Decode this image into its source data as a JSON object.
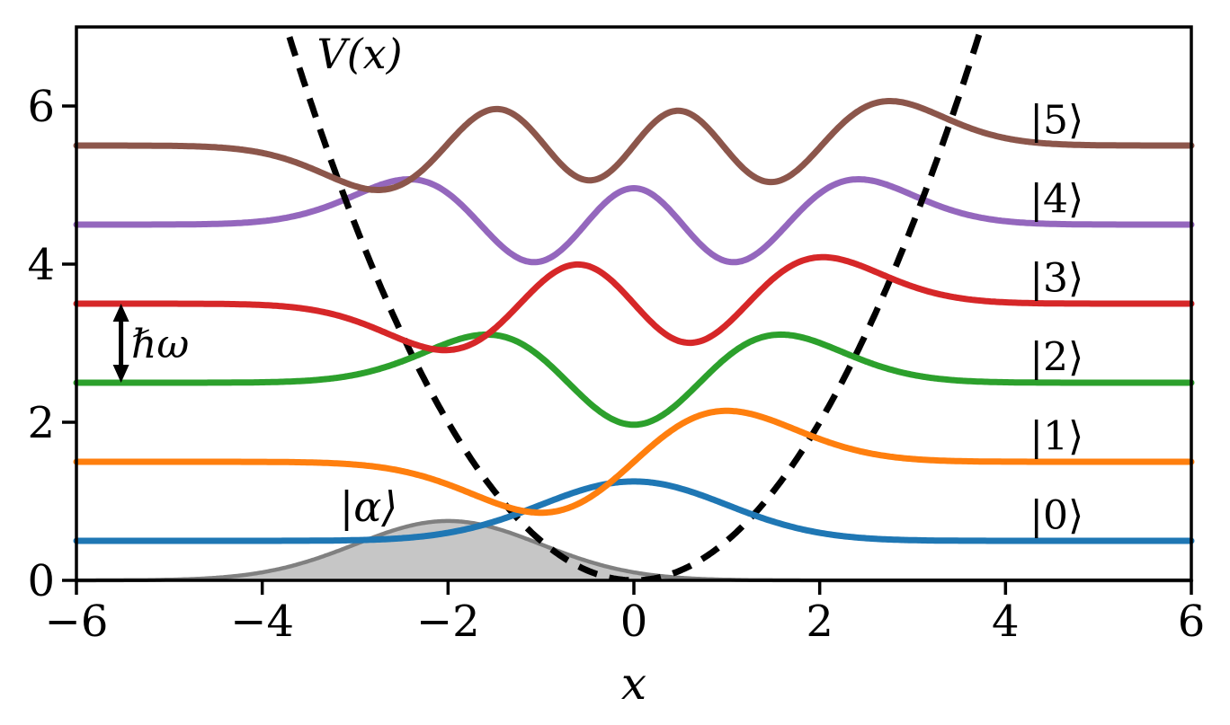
{
  "chart_data": {
    "type": "line",
    "title": "",
    "xlabel": "x",
    "ylabel": "",
    "xlim": [
      -6,
      6
    ],
    "ylim": [
      0,
      7
    ],
    "xticks": [
      -6,
      -4,
      -2,
      0,
      2,
      4,
      6
    ],
    "xtick_labels": [
      "−6",
      "−4",
      "−2",
      "0",
      "2",
      "4",
      "6"
    ],
    "yticks": [
      0,
      2,
      4,
      6
    ],
    "ytick_labels": [
      "0",
      "2",
      "4",
      "6"
    ],
    "grid": false,
    "legend_position": "none",
    "potential": {
      "label": "V(x)",
      "shape": "parabola",
      "coefficient": 0.5,
      "color": "#000000",
      "linestyle": "dashed",
      "label_pos": [
        -2.95,
        6.7
      ]
    },
    "eigenstates": [
      {
        "n": 0,
        "energy": 0.5,
        "label": "|0⟩",
        "color": "#1f77b4",
        "label_pos": [
          4.55,
          0.86
        ]
      },
      {
        "n": 1,
        "energy": 1.5,
        "label": "|1⟩",
        "color": "#ff7f0e",
        "label_pos": [
          4.55,
          1.86
        ]
      },
      {
        "n": 2,
        "energy": 2.5,
        "label": "|2⟩",
        "color": "#2ca02c",
        "label_pos": [
          4.55,
          2.86
        ]
      },
      {
        "n": 3,
        "energy": 3.5,
        "label": "|3⟩",
        "color": "#d62728",
        "label_pos": [
          4.55,
          3.86
        ]
      },
      {
        "n": 4,
        "energy": 4.5,
        "label": "|4⟩",
        "color": "#9467bd",
        "label_pos": [
          4.55,
          4.86
        ]
      },
      {
        "n": 5,
        "energy": 5.5,
        "label": "|5⟩",
        "color": "#8c564b",
        "label_pos": [
          4.55,
          5.86
        ]
      }
    ],
    "amplitude_scale": 1.0,
    "coherent_state": {
      "label": "|α⟩",
      "center": -2.0,
      "sigma": 1.0,
      "amplitude": 0.7511,
      "fill_color": "#c6c6c6",
      "line_color": "#808080",
      "label_color": "#808080",
      "label_pos": [
        -2.85,
        0.95
      ]
    },
    "energy_spacing_annotation": {
      "label": "ℏω",
      "x": -5.52,
      "y_from": 2.5,
      "y_to": 3.5,
      "color": "#000000",
      "label_pos": [
        -5.41,
        3.02
      ]
    }
  }
}
